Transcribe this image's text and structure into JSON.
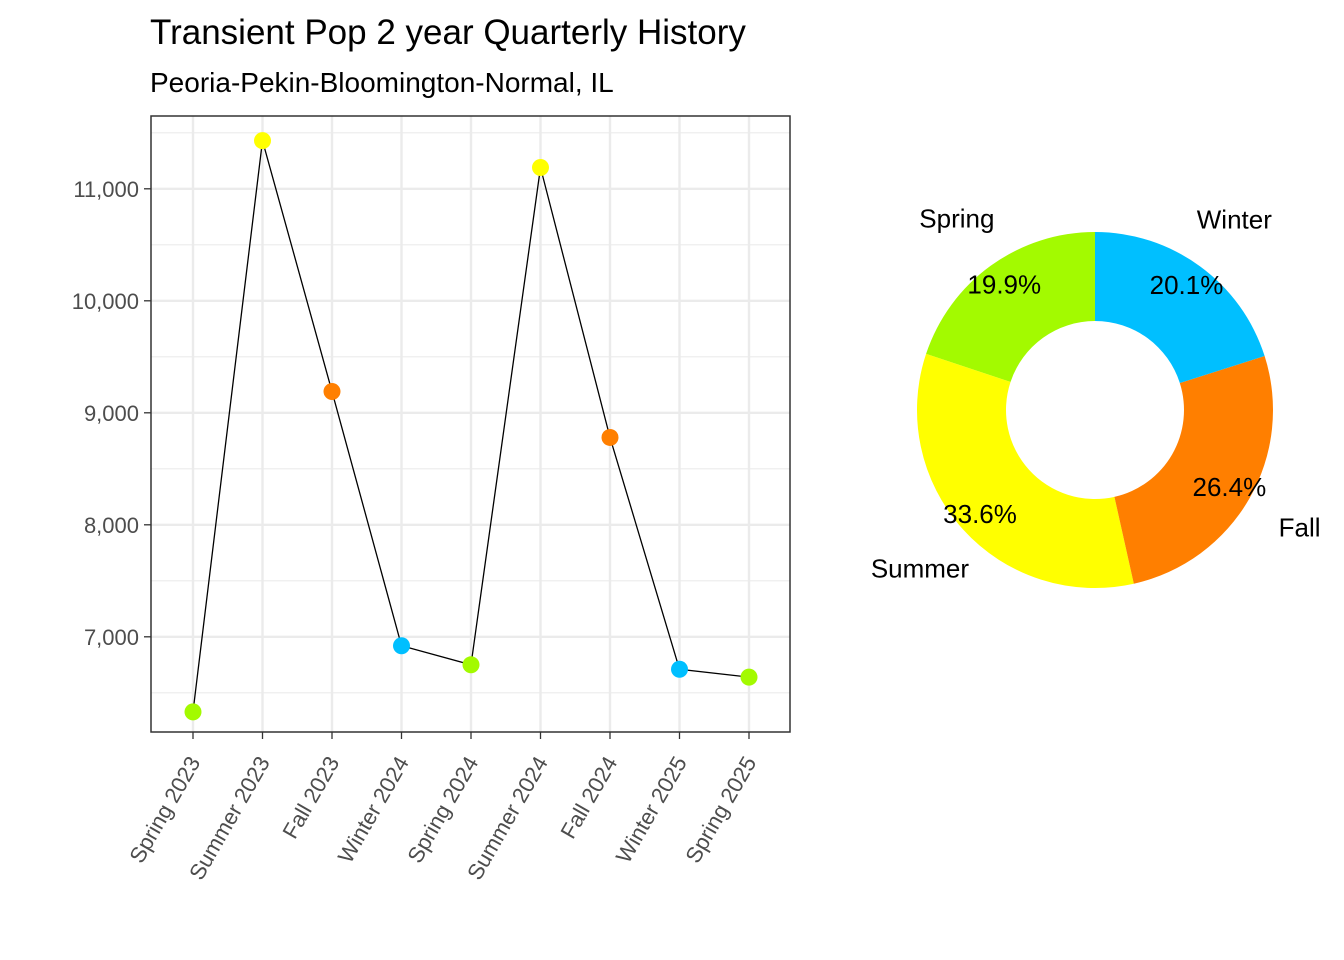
{
  "chart_data": [
    {
      "type": "line",
      "title": "Transient Pop 2 year Quarterly History",
      "subtitle": "Peoria-Pekin-Bloomington-Normal, IL",
      "categories": [
        "Spring 2023",
        "Summer 2023",
        "Fall 2023",
        "Winter 2024",
        "Spring 2024",
        "Summer 2024",
        "Fall 2024",
        "Winter 2025",
        "Spring 2025"
      ],
      "values": [
        6330,
        11430,
        9190,
        6920,
        6750,
        11190,
        8780,
        6710,
        6640
      ],
      "seasons": [
        "Spring",
        "Summer",
        "Fall",
        "Winter",
        "Spring",
        "Summer",
        "Fall",
        "Winter",
        "Spring"
      ],
      "yticks": [
        7000,
        8000,
        9000,
        10000,
        11000
      ],
      "ytick_labels": [
        "7,000",
        "8,000",
        "9,000",
        "10,000",
        "11,000"
      ],
      "ylim": [
        6150,
        11650
      ],
      "grid": true,
      "line_color": "#000000"
    },
    {
      "type": "pie",
      "donut": true,
      "slices": [
        {
          "label": "Spring",
          "value": 19.9,
          "pct_label": "19.9%",
          "color": "#A3FA00"
        },
        {
          "label": "Summer",
          "value": 33.6,
          "pct_label": "33.6%",
          "color": "#FFFF00"
        },
        {
          "label": "Fall",
          "value": 26.4,
          "pct_label": "26.4%",
          "color": "#FF7F00"
        },
        {
          "label": "Winter",
          "value": 20.1,
          "pct_label": "20.1%",
          "color": "#00BFFF"
        }
      ]
    }
  ],
  "season_colors": {
    "Spring": "#A3FA00",
    "Summer": "#FFFF00",
    "Fall": "#FF7F00",
    "Winter": "#00BFFF"
  }
}
